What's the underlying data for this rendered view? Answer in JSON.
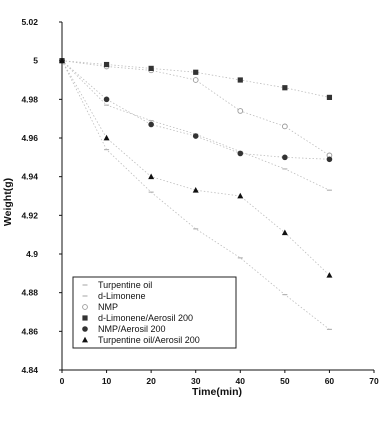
{
  "chart_data": {
    "type": "scatter",
    "title": "",
    "xlabel": "Time(min)",
    "ylabel": "Weight(g)",
    "xlim": [
      0,
      70
    ],
    "ylim": [
      4.84,
      5.02
    ],
    "xticks": [
      "0",
      "10",
      "20",
      "30",
      "40",
      "50",
      "60",
      "70"
    ],
    "yticks": [
      "4.84",
      "4.86",
      "4.88",
      "4.9",
      "4.92",
      "4.94",
      "4.96",
      "4.98",
      "5",
      "5.02"
    ],
    "grid": false,
    "legend_position": "bottom-left",
    "x": [
      0,
      10,
      20,
      30,
      40,
      50,
      60
    ],
    "series": [
      {
        "name": "Turpentine oil",
        "marker": "dash",
        "color": "#b5b5b5",
        "values": [
          5.0,
          4.954,
          4.932,
          4.913,
          4.898,
          4.879,
          4.861
        ]
      },
      {
        "name": "d-Limonene",
        "marker": "dash",
        "color": "#b5b5b5",
        "values": [
          5.0,
          4.977,
          4.969,
          4.962,
          4.953,
          4.944,
          4.933
        ]
      },
      {
        "name": "NMP",
        "marker": "circle-open",
        "color": "#9a9a9a",
        "values": [
          5.0,
          4.997,
          4.995,
          4.99,
          4.974,
          4.966,
          4.951
        ]
      },
      {
        "name": "d-Limonene/Aerosil 200",
        "marker": "square",
        "color": "#333333",
        "values": [
          5.0,
          4.998,
          4.996,
          4.994,
          4.99,
          4.986,
          4.981
        ]
      },
      {
        "name": "NMP/Aerosil 200",
        "marker": "circle",
        "color": "#333333",
        "values": [
          5.0,
          4.98,
          4.967,
          4.961,
          4.952,
          4.95,
          4.949
        ]
      },
      {
        "name": "Turpentine oil/Aerosil 200",
        "marker": "triangle",
        "color": "#111111",
        "values": [
          5.0,
          4.96,
          4.94,
          4.933,
          4.93,
          4.911,
          4.889
        ]
      }
    ]
  }
}
